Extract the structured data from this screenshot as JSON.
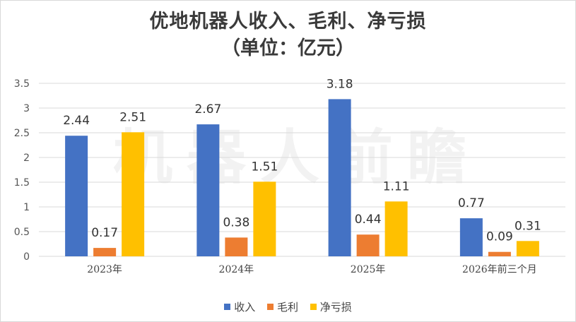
{
  "chart_data": {
    "type": "bar",
    "title": "优地机器人收入、毛利、净亏损",
    "subtitle": "（单位：亿元）",
    "categories": [
      "2023年",
      "2024年",
      "2025年",
      "2026年前三个月"
    ],
    "series": [
      {
        "name": "收入",
        "color": "#4472C4",
        "values": [
          2.44,
          2.67,
          3.18,
          0.77
        ]
      },
      {
        "name": "毛利",
        "color": "#ED7D31",
        "values": [
          0.17,
          0.38,
          0.44,
          0.09
        ]
      },
      {
        "name": "净亏损",
        "color": "#FFC000",
        "values": [
          2.51,
          1.51,
          1.11,
          0.31
        ]
      }
    ],
    "ylim": [
      0,
      3.5
    ],
    "yticks": [
      "0",
      "0.5",
      "1",
      "1.5",
      "2",
      "2.5",
      "3",
      "3.5"
    ],
    "grid": true,
    "legend": "bottom"
  },
  "watermark": "机器人前瞻"
}
